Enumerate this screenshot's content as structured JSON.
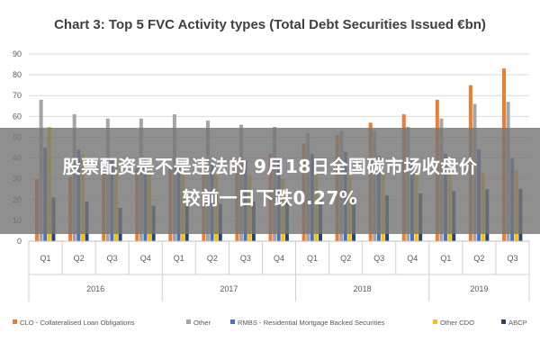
{
  "overlay": {
    "line1": "股票配资是不是违法的 9月18日全国碳市场收盘价",
    "line2": "较前一日下跌0.27%"
  },
  "chart_data": {
    "type": "bar",
    "title": "Chart 3: Top 5 FVC Activity types (Total Debt Securities Issued €bn)",
    "xlabel": "",
    "ylabel": "",
    "ylim": [
      0,
      90
    ],
    "yticks": [
      0,
      10,
      20,
      30,
      40,
      50,
      60,
      70,
      80,
      90
    ],
    "grid": true,
    "legend_position": "bottom",
    "categories": [
      "Q1",
      "Q2",
      "Q3",
      "Q4",
      "Q1",
      "Q2",
      "Q3",
      "Q4",
      "Q1",
      "Q2",
      "Q3",
      "Q4",
      "Q1",
      "Q2",
      "Q3"
    ],
    "year_groups": [
      {
        "label": "2016",
        "count": 4
      },
      {
        "label": "2017",
        "count": 4
      },
      {
        "label": "2018",
        "count": 4
      },
      {
        "label": "2019",
        "count": 3
      }
    ],
    "series": [
      {
        "name": "CLO - Collateralised Loan Obligations",
        "color": "#ED7D31",
        "values": [
          30,
          31,
          33,
          35,
          35,
          36,
          39,
          42,
          47,
          51,
          57,
          61,
          68,
          75,
          83
        ]
      },
      {
        "name": "Other",
        "color": "#A5A5A5",
        "values": [
          68,
          61,
          59,
          59,
          61,
          58,
          56,
          55,
          52,
          53,
          53,
          55,
          59,
          66,
          67
        ]
      },
      {
        "name": "RMBS - Residential Mortgage Backed Securities",
        "color": "#4472C4",
        "values": [
          45,
          44,
          40,
          40,
          38,
          38,
          39,
          40,
          42,
          43,
          41,
          40,
          42,
          44,
          40
        ]
      },
      {
        "name": "Other CDO",
        "color": "#FFC000",
        "values": [
          55,
          42,
          38,
          36,
          33,
          32,
          32,
          30,
          32,
          32,
          32,
          33,
          34,
          33,
          34
        ]
      },
      {
        "name": "ABCP",
        "color": "#264478",
        "values": [
          21,
          19,
          16,
          17,
          17,
          18,
          19,
          20,
          21,
          21,
          22,
          23,
          24,
          25,
          25
        ]
      }
    ]
  }
}
